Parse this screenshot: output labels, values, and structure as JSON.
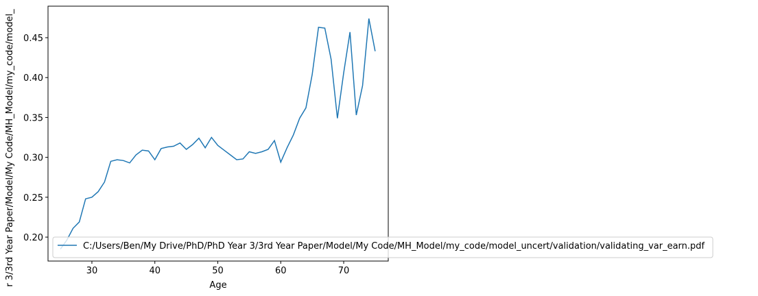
{
  "chart_data": {
    "type": "line",
    "xlabel": "Age",
    "ylabel": "r 3/3rd Year Paper/Model/My Code/MH_Model/my_code/model_",
    "x": [
      25,
      26,
      27,
      28,
      29,
      30,
      31,
      32,
      33,
      34,
      35,
      36,
      37,
      38,
      39,
      40,
      41,
      42,
      43,
      44,
      45,
      46,
      47,
      48,
      49,
      50,
      51,
      52,
      53,
      54,
      55,
      56,
      57,
      58,
      59,
      60,
      61,
      62,
      63,
      64,
      65,
      66,
      67,
      68,
      69,
      70,
      71,
      72,
      73,
      74,
      75
    ],
    "series": [
      {
        "name": "C:/Users/Ben/My Drive/PhD/PhD Year 3/3rd Year Paper/Model/My Code/MH_Model/my_code/model_uncert/validation/validating_var_earn.pdf",
        "color": "#1f77b4",
        "values": [
          0.185,
          0.196,
          0.211,
          0.219,
          0.248,
          0.25,
          0.257,
          0.269,
          0.295,
          0.297,
          0.296,
          0.293,
          0.303,
          0.309,
          0.308,
          0.297,
          0.311,
          0.313,
          0.314,
          0.318,
          0.31,
          0.316,
          0.324,
          0.312,
          0.325,
          0.315,
          0.309,
          0.303,
          0.297,
          0.298,
          0.307,
          0.305,
          0.307,
          0.31,
          0.321,
          0.294,
          0.312,
          0.328,
          0.349,
          0.362,
          0.404,
          0.463,
          0.462,
          0.423,
          0.349,
          0.406,
          0.457,
          0.353,
          0.39,
          0.474,
          0.433
        ]
      }
    ],
    "xlim": [
      23.03,
      77.08
    ],
    "ylim": [
      0.17,
      0.4895
    ],
    "xticks": [
      30,
      40,
      50,
      60,
      70
    ],
    "yticks": [
      {
        "value": 0.2,
        "label": "0.20"
      },
      0.25,
      {
        "value": 0.3,
        "label": "0.30"
      },
      0.35,
      {
        "value": 0.4,
        "label": "0.40"
      },
      0.45
    ],
    "legend": "lower left"
  }
}
